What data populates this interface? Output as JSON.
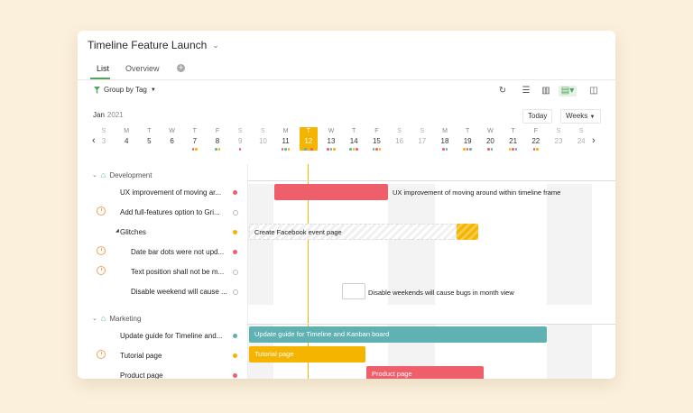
{
  "title": "Timeline Feature Launch",
  "tabs": [
    "List",
    "Overview"
  ],
  "toolbar": {
    "group_label": "Group by Tag"
  },
  "calendar": {
    "month": "Jan",
    "year": "2021",
    "today_label": "Today",
    "range_label": "Weeks",
    "days": [
      {
        "wd": "S",
        "dn": "3"
      },
      {
        "wd": "M",
        "dn": "4"
      },
      {
        "wd": "T",
        "dn": "5"
      },
      {
        "wd": "W",
        "dn": "6"
      },
      {
        "wd": "T",
        "dn": "7"
      },
      {
        "wd": "F",
        "dn": "8"
      },
      {
        "wd": "S",
        "dn": "9"
      },
      {
        "wd": "S",
        "dn": "10"
      },
      {
        "wd": "M",
        "dn": "11"
      },
      {
        "wd": "T",
        "dn": "12"
      },
      {
        "wd": "W",
        "dn": "13"
      },
      {
        "wd": "T",
        "dn": "14"
      },
      {
        "wd": "F",
        "dn": "15"
      },
      {
        "wd": "S",
        "dn": "16"
      },
      {
        "wd": "S",
        "dn": "17"
      },
      {
        "wd": "M",
        "dn": "18"
      },
      {
        "wd": "T",
        "dn": "19"
      },
      {
        "wd": "W",
        "dn": "20"
      },
      {
        "wd": "T",
        "dn": "21"
      },
      {
        "wd": "F",
        "dn": "22"
      },
      {
        "wd": "S",
        "dn": "23"
      },
      {
        "wd": "S",
        "dn": "24"
      }
    ]
  },
  "groups": {
    "development": "Development",
    "marketing": "Marketing"
  },
  "tasks": {
    "t1": "UX improvement of moving ar...",
    "t2": "Add full-features option to Gri...",
    "t3": "Glitches",
    "t4": "Date bar dots were not upd...",
    "t5": "Text position shall not be m...",
    "t6": "Disable weekend will cause ...",
    "t7": "Update guide for Timeline and...",
    "t8": "Tutorial page",
    "t9": "Product page"
  },
  "bars": {
    "b1_label": "UX improvement of moving around within timeline frame",
    "b3_label": "Create Facebook event page",
    "b6_label": "Disable weekends will cause bugs in month view",
    "b7_label": "Update guide for Timeline and Kanban board",
    "b8_label": "Tutorial page",
    "b9_label": "Product page"
  },
  "colors": {
    "red": "#ef5f6b",
    "yellow": "#f5b400",
    "teal": "#5fb1b2",
    "green": "#55a35b"
  }
}
